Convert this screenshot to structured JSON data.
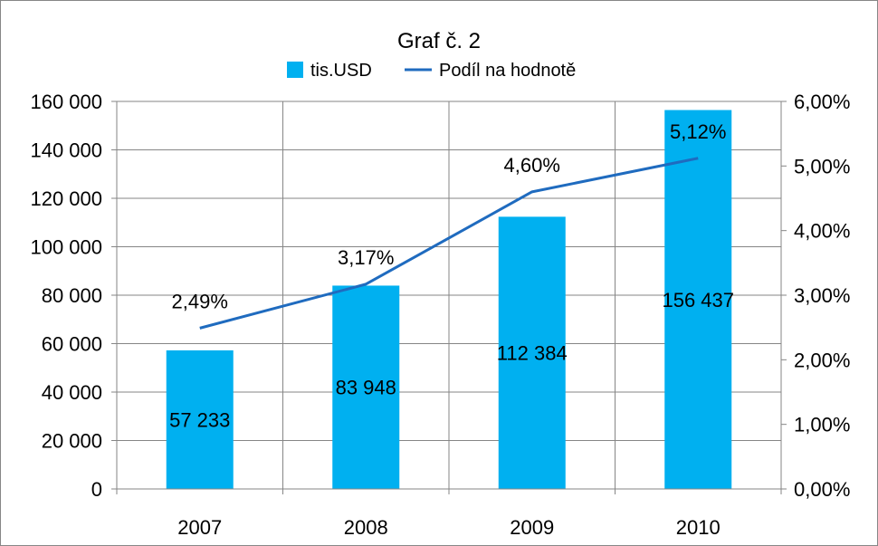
{
  "chart_data": {
    "type": "bar",
    "title": "Graf č. 2",
    "categories": [
      "2007",
      "2008",
      "2009",
      "2010"
    ],
    "series": [
      {
        "name": "tis.USD",
        "type": "bar",
        "axis": "left",
        "values": [
          57233,
          83948,
          112384,
          156437
        ],
        "data_labels": [
          "57 233",
          "83 948",
          "112 384",
          "156 437"
        ],
        "color": "#00B0F0"
      },
      {
        "name": "Podíl na hodnotě",
        "type": "line",
        "axis": "right",
        "values": [
          2.49,
          3.17,
          4.6,
          5.12
        ],
        "data_labels": [
          "2,49%",
          "3,17%",
          "4,60%",
          "5,12%"
        ],
        "color": "#1F6BBF"
      }
    ],
    "y_left": {
      "ylim": [
        0,
        160000
      ],
      "tick_values": [
        0,
        20000,
        40000,
        60000,
        80000,
        100000,
        120000,
        140000,
        160000
      ],
      "tick_labels": [
        "0",
        "20 000",
        "40 000",
        "60 000",
        "80 000",
        "100 000",
        "120 000",
        "140 000",
        "160 000"
      ]
    },
    "y_right": {
      "ylim": [
        0,
        6
      ],
      "tick_values": [
        0,
        1,
        2,
        3,
        4,
        5,
        6
      ],
      "tick_labels": [
        "0,00%",
        "1,00%",
        "2,00%",
        "3,00%",
        "4,00%",
        "5,00%",
        "6,00%"
      ]
    },
    "grid": true,
    "legend_position": "top"
  }
}
